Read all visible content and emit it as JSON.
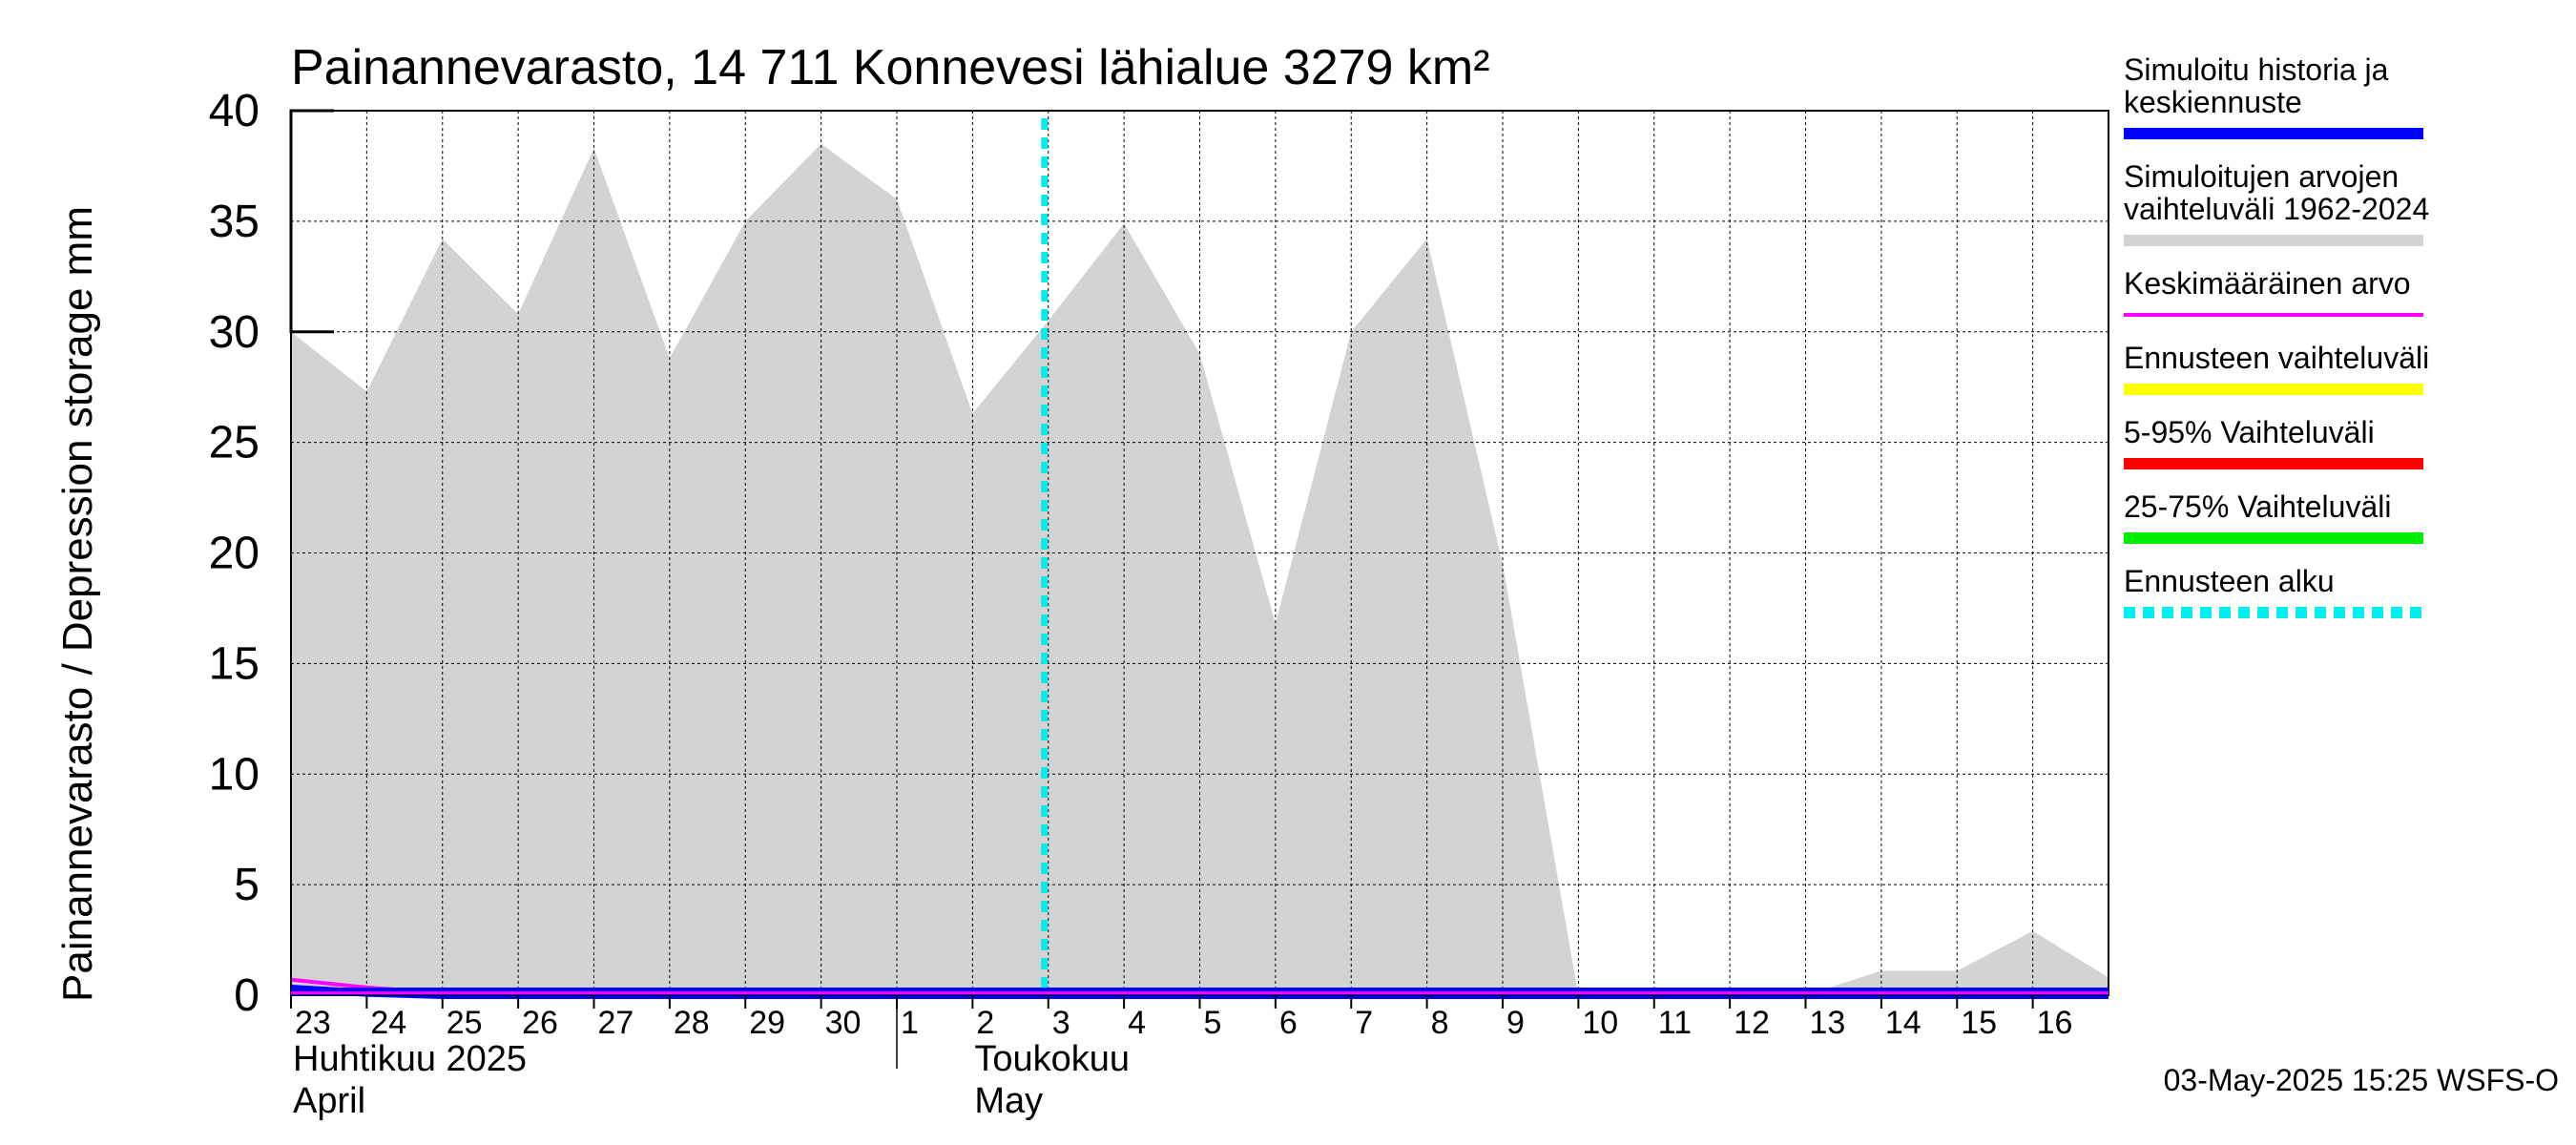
{
  "chart_data": {
    "type": "area",
    "title": "Painannevarasto, 14 711 Konnevesi lähialue 3279 km²",
    "ylabel": "Painannevarasto / Depression storage    mm",
    "ylim": [
      0,
      40
    ],
    "yticks": [
      "0",
      "5",
      "10",
      "15",
      "20",
      "25",
      "30",
      "35",
      "40"
    ],
    "x_day_labels": [
      "23",
      "24",
      "25",
      "26",
      "27",
      "28",
      "29",
      "30",
      "1",
      "2",
      "3",
      "4",
      "5",
      "6",
      "7",
      "8",
      "9",
      "10",
      "11",
      "12",
      "13",
      "14",
      "15",
      "16"
    ],
    "x_range_days": [
      0,
      24
    ],
    "month_labels": [
      {
        "line1": "Huhtikuu  2025",
        "line2": "April",
        "day_index": 0
      },
      {
        "line1": "Toukokuu",
        "line2": "May",
        "day_index": 9
      }
    ],
    "month_divider_day_index": 8,
    "range_band": {
      "name": "Simuloitujen arvojen vaihteluväli 1962-2024",
      "color": "#d3d3d3",
      "x": [
        0,
        1,
        2,
        3,
        4,
        5,
        6,
        7,
        8,
        9,
        10,
        11,
        12,
        13,
        14,
        15,
        16,
        17,
        18,
        19,
        20,
        21,
        22,
        23,
        24
      ],
      "upper": [
        30.0,
        27.3,
        34.2,
        30.8,
        38.3,
        28.8,
        35.0,
        38.5,
        36.0,
        26.3,
        30.5,
        34.9,
        29.0,
        16.8,
        30.0,
        34.2,
        19.5,
        0.0,
        0.0,
        0.0,
        0.0,
        1.1,
        1.1,
        2.9,
        0.8
      ],
      "lower": [
        0,
        0,
        0,
        0,
        0,
        0,
        0,
        0,
        0,
        0,
        0,
        0,
        0,
        0,
        0,
        0,
        0,
        0,
        0,
        0,
        0,
        0,
        0,
        0,
        0
      ]
    },
    "series": [
      {
        "name": "Simuloitu historia ja keskiennuste",
        "color": "#0000ff",
        "x": [
          0,
          1,
          2,
          24
        ],
        "values": [
          0.3,
          0.1,
          0.0,
          0.0
        ]
      },
      {
        "name": "Keskimääräinen arvo",
        "color": "#ff00ff",
        "x": [
          0,
          1,
          2,
          24
        ],
        "values": [
          0.7,
          0.35,
          0.1,
          0.1
        ]
      }
    ],
    "forecast_start_x": 10.0,
    "legend": [
      {
        "lines": [
          "Simuloitu historia ja",
          "keskiennuste"
        ],
        "color": "#0000ff",
        "style": "solid"
      },
      {
        "lines": [
          "Simuloitujen arvojen",
          "vaihteluväli 1962-2024"
        ],
        "color": "#d3d3d3",
        "style": "solid"
      },
      {
        "lines": [
          "Keskimääräinen arvo"
        ],
        "color": "#ff00ff",
        "style": "thin"
      },
      {
        "lines": [
          "Ennusteen vaihteluväli"
        ],
        "color": "#ffff00",
        "style": "solid"
      },
      {
        "lines": [
          "5-95% Vaihteluväli"
        ],
        "color": "#ff0000",
        "style": "solid"
      },
      {
        "lines": [
          "25-75% Vaihteluväli"
        ],
        "color": "#00ee00",
        "style": "solid"
      },
      {
        "lines": [
          "Ennusteen alku"
        ],
        "color": "#00eeee",
        "style": "dashed"
      }
    ],
    "legend_position": "right",
    "grid": true
  },
  "footer": "03-May-2025 15:25 WSFS-O"
}
